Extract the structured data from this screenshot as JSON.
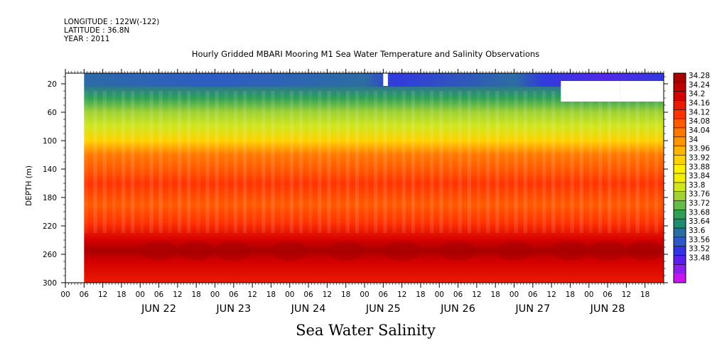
{
  "header": {
    "longitude": "LONGITUDE : 122W(-122)",
    "latitude": "LATITUDE : 36.8N",
    "year": "YEAR : 2011"
  },
  "chart_data": {
    "type": "heatmap",
    "title": "Hourly Gridded MBARI Mooring M1 Sea Water Temperature and Salinity Observations",
    "caption": "Sea Water Salinity",
    "xlabel": "",
    "ylabel": "DEPTH (m)",
    "y_range_m": [
      5,
      300
    ],
    "y_ticks": [
      "20",
      "60",
      "100",
      "140",
      "180",
      "220",
      "260",
      "300"
    ],
    "x_range_hours_from_jun22_00": [
      -24,
      168
    ],
    "x_hour_ticks": [
      "00",
      "06",
      "12",
      "18",
      "00",
      "06",
      "12",
      "18",
      "00",
      "06",
      "12",
      "18",
      "00",
      "06",
      "12",
      "18",
      "00",
      "06",
      "12",
      "18",
      "00",
      "06",
      "12",
      "18",
      "00",
      "06",
      "12",
      "18",
      "00",
      "06",
      "12",
      "18"
    ],
    "x_date_labels": [
      "JUN 22",
      "JUN 23",
      "JUN 24",
      "JUN 25",
      "JUN 26",
      "JUN 27",
      "JUN 28"
    ],
    "colorbar_labels": [
      "34.28",
      "34.24",
      "34.2",
      "34.16",
      "34.12",
      "34.08",
      "34.04",
      "34",
      "33.96",
      "33.92",
      "33.88",
      "33.84",
      "33.8",
      "33.76",
      "33.72",
      "33.68",
      "33.64",
      "33.6",
      "33.56",
      "33.52",
      "33.48"
    ],
    "colorbar_colors": [
      "#a80000",
      "#be0000",
      "#d40000",
      "#ea1a00",
      "#ff3300",
      "#ff5a00",
      "#ff7800",
      "#ff9600",
      "#ffb400",
      "#ffd200",
      "#fff000",
      "#f0f000",
      "#d2e61e",
      "#a0d232",
      "#64be46",
      "#2da056",
      "#1e8c6e",
      "#2d6ea0",
      "#2d5ac8",
      "#3232e6",
      "#5a1ef0",
      "#8c1ef0",
      "#c814f0"
    ],
    "depth_profile": [
      {
        "depth": 5,
        "value": 33.62
      },
      {
        "depth": 20,
        "value": 33.66
      },
      {
        "depth": 40,
        "value": 33.74
      },
      {
        "depth": 60,
        "value": 33.8
      },
      {
        "depth": 80,
        "value": 33.86
      },
      {
        "depth": 100,
        "value": 33.96
      },
      {
        "depth": 120,
        "value": 34.04
      },
      {
        "depth": 140,
        "value": 34.09
      },
      {
        "depth": 160,
        "value": 34.12
      },
      {
        "depth": 190,
        "value": 34.09
      },
      {
        "depth": 215,
        "value": 34.12
      },
      {
        "depth": 240,
        "value": 34.2
      },
      {
        "depth": 255,
        "value": 34.25
      },
      {
        "depth": 270,
        "value": 34.2
      },
      {
        "depth": 300,
        "value": 34.16
      }
    ],
    "no_data_regions": [
      {
        "x_hours": [
          -24,
          -18
        ],
        "depth_m": [
          5,
          300
        ]
      },
      {
        "x_hours": [
          78,
          79.5
        ],
        "depth_m": [
          5,
          23
        ]
      },
      {
        "x_hours": [
          135,
          154
        ],
        "depth_m": [
          16,
          45
        ]
      },
      {
        "x_hours": [
          154,
          168
        ],
        "depth_m": [
          16,
          45
        ]
      }
    ],
    "grid": false,
    "legend": "right"
  }
}
